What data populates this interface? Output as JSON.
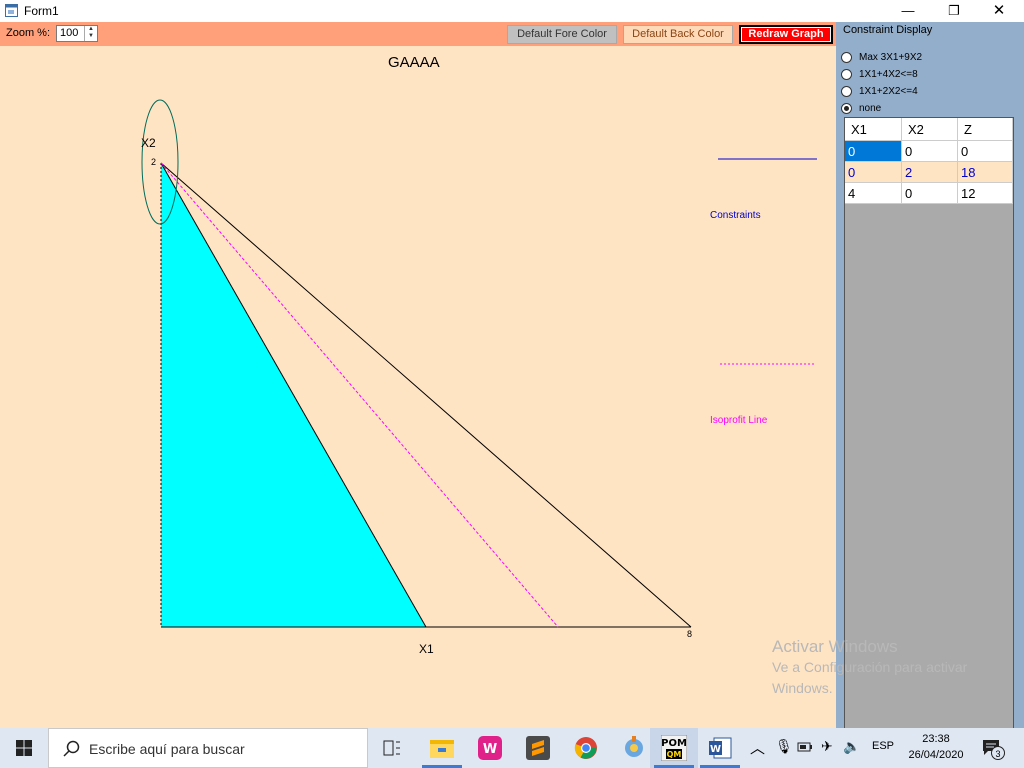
{
  "window": {
    "title": "Form1",
    "minimize": "—",
    "maximize": "❐",
    "close": "✕"
  },
  "toolbar": {
    "zoom_label": "Zoom %:",
    "zoom_value": "100",
    "fore_color_btn": "Default Fore Color",
    "back_color_btn": "Default Back Color",
    "redraw_btn": "Redraw Graph"
  },
  "graph": {
    "title": "GAAAA",
    "x_axis_label": "X1",
    "y_axis_label": "X2",
    "x_max_label": "8",
    "y_max_label": "2",
    "legend_constraints": "Constraints",
    "legend_isoprofit": "Isoprofit Line",
    "colors": {
      "feasible": "#00ffff",
      "background": "#ffe4c4",
      "constraint": "#0000cd",
      "isoprofit": "#ff00ff"
    }
  },
  "panel": {
    "title": "Constraint Display",
    "options": [
      {
        "label": "Max 3X1+9X2",
        "checked": false
      },
      {
        "label": "1X1+4X2<=8",
        "checked": false
      },
      {
        "label": "1X1+2X2<=4",
        "checked": false
      },
      {
        "label": "none",
        "checked": true
      }
    ],
    "table": {
      "headers": [
        "X1",
        "X2",
        "Z"
      ],
      "rows": [
        [
          "0",
          "0",
          "0"
        ],
        [
          "0",
          "2",
          "18"
        ],
        [
          "4",
          "0",
          "12"
        ]
      ]
    }
  },
  "watermark": {
    "line1": "Activar Windows",
    "line2": "Ve a Configuración para activar",
    "line3": "Windows."
  },
  "taskbar": {
    "search_placeholder": "Escribe aquí para buscar",
    "language": "ESP",
    "time": "23:38",
    "date": "26/04/2020",
    "notification_count": "3"
  }
}
